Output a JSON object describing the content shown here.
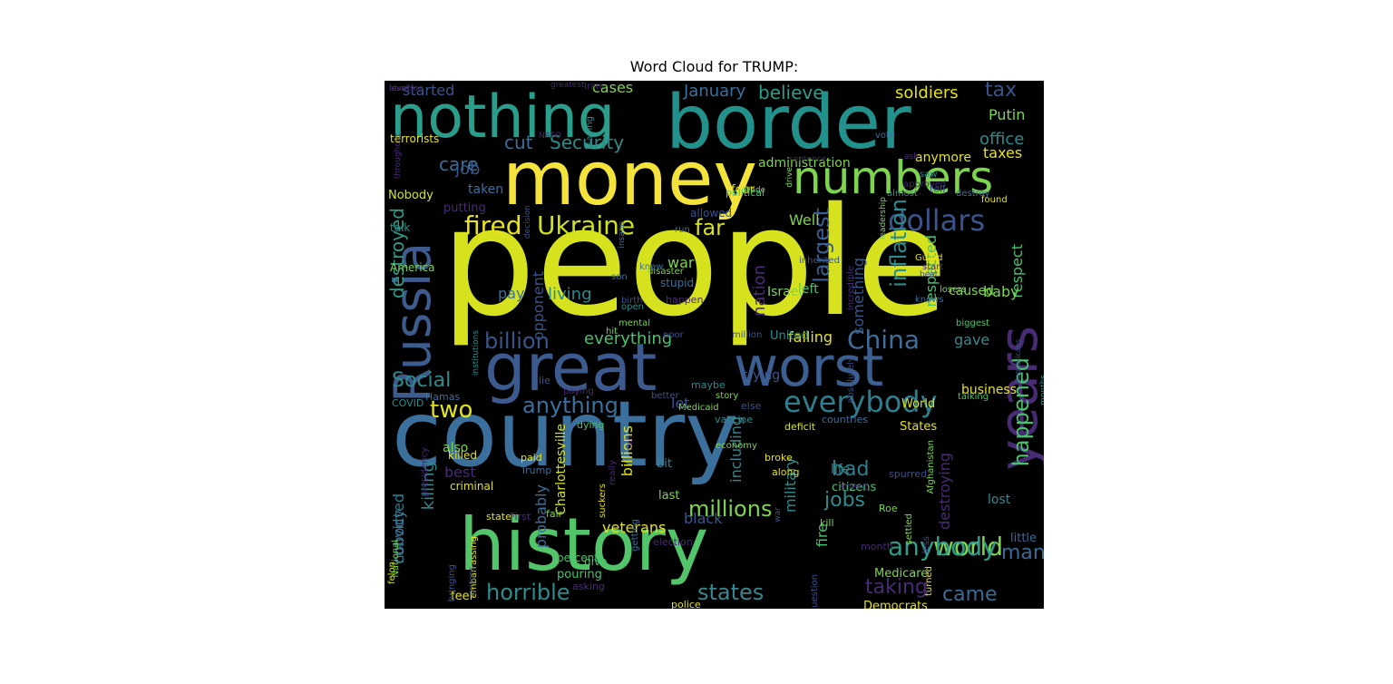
{
  "chart_data": {
    "type": "wordcloud",
    "title": "Word Cloud for TRUMP:",
    "background": "#000000",
    "words": [
      {
        "text": "people",
        "size": 165,
        "color": "#d6e21d"
      },
      {
        "text": "country",
        "size": 100,
        "color": "#3b6f9c"
      },
      {
        "text": "history",
        "size": 80,
        "color": "#52c56a"
      },
      {
        "text": "money",
        "size": 82,
        "color": "#f4e33b"
      },
      {
        "text": "border",
        "size": 82,
        "color": "#22918c"
      },
      {
        "text": "nothing",
        "size": 65,
        "color": "#2b9d8b"
      },
      {
        "text": "great",
        "size": 72,
        "color": "#3c5a8e"
      },
      {
        "text": "worst",
        "size": 60,
        "color": "#3b5f91"
      },
      {
        "text": "Russia",
        "size": 55,
        "color": "#3d5b8d"
      },
      {
        "text": "years",
        "size": 58,
        "color": "#482a75"
      },
      {
        "text": "numbers",
        "size": 50,
        "color": "#7ed44f"
      },
      {
        "text": "dollars",
        "size": 32,
        "color": "#3a538b"
      },
      {
        "text": "everybody",
        "size": 32,
        "color": "#2e7e8e"
      },
      {
        "text": "China",
        "size": 28,
        "color": "#3f6e99"
      },
      {
        "text": "fired",
        "size": 28,
        "color": "#e6e21d"
      },
      {
        "text": "Ukraine",
        "size": 28,
        "color": "#cfe11c"
      },
      {
        "text": "far",
        "size": 24,
        "color": "#d6e21d"
      },
      {
        "text": "largest",
        "size": 24,
        "color": "#3b5f91"
      },
      {
        "text": "inflation",
        "size": 24,
        "color": "#2e8b8c"
      },
      {
        "text": "anything",
        "size": 24,
        "color": "#3b6f9c"
      },
      {
        "text": "billion",
        "size": 24,
        "color": "#38568a"
      },
      {
        "text": "Social",
        "size": 22,
        "color": "#2e8b8c"
      },
      {
        "text": "two",
        "size": 26,
        "color": "#e0e31b"
      },
      {
        "text": "world",
        "size": 28,
        "color": "#7ed44f"
      },
      {
        "text": "anybody",
        "size": 28,
        "color": "#2f9b88"
      },
      {
        "text": "millions",
        "size": 24,
        "color": "#7ed44f"
      },
      {
        "text": "horrible",
        "size": 24,
        "color": "#2e8b8c"
      },
      {
        "text": "states",
        "size": 24,
        "color": "#38868e"
      },
      {
        "text": "happened",
        "size": 24,
        "color": "#4ac16d"
      },
      {
        "text": "jobs",
        "size": 22,
        "color": "#2e8b8c"
      },
      {
        "text": "bad",
        "size": 22,
        "color": "#2e7e8e"
      },
      {
        "text": "came",
        "size": 22,
        "color": "#3a6a95"
      },
      {
        "text": "man",
        "size": 22,
        "color": "#3a6a95"
      },
      {
        "text": "taking",
        "size": 22,
        "color": "#482a75"
      },
      {
        "text": "destroyed",
        "size": 20,
        "color": "#2f9b88"
      },
      {
        "text": "Security",
        "size": 20,
        "color": "#2e8b8c"
      },
      {
        "text": "cut",
        "size": 20,
        "color": "#3b6f9c"
      },
      {
        "text": "care",
        "size": 20,
        "color": "#3b6f9c"
      },
      {
        "text": "job",
        "size": 18,
        "color": "#38568a"
      },
      {
        "text": "tax",
        "size": 22,
        "color": "#3a538b"
      },
      {
        "text": "office",
        "size": 18,
        "color": "#2e8b8c"
      },
      {
        "text": "taxes",
        "size": 16,
        "color": "#e6e21d"
      },
      {
        "text": "Putin",
        "size": 16,
        "color": "#7ed44f"
      },
      {
        "text": "soldiers",
        "size": 18,
        "color": "#e6e21d"
      },
      {
        "text": "believe",
        "size": 20,
        "color": "#2f9b88"
      },
      {
        "text": "January",
        "size": 18,
        "color": "#3b6f9c"
      },
      {
        "text": "cases",
        "size": 16,
        "color": "#7ed44f"
      },
      {
        "text": "started",
        "size": 16,
        "color": "#3a538b"
      },
      {
        "text": "administration",
        "size": 14,
        "color": "#7ed44f"
      },
      {
        "text": "anymore",
        "size": 14,
        "color": "#e6e21d"
      },
      {
        "text": "respect",
        "size": 16,
        "color": "#4ac16d"
      },
      {
        "text": "respected",
        "size": 16,
        "color": "#4ac16d"
      },
      {
        "text": "something",
        "size": 16,
        "color": "#38568a"
      },
      {
        "text": "nation",
        "size": 18,
        "color": "#482a75"
      },
      {
        "text": "war",
        "size": 16,
        "color": "#7ed44f"
      },
      {
        "text": "living",
        "size": 18,
        "color": "#2e8b8c"
      },
      {
        "text": "pay",
        "size": 16,
        "color": "#3b6f9c"
      },
      {
        "text": "opponent",
        "size": 16,
        "color": "#3a538b"
      },
      {
        "text": "everything",
        "size": 18,
        "color": "#4ac16d"
      },
      {
        "text": "failing",
        "size": 16,
        "color": "#e6e21d"
      },
      {
        "text": "gave",
        "size": 16,
        "color": "#38868e"
      },
      {
        "text": "baby",
        "size": 16,
        "color": "#7ed44f"
      },
      {
        "text": "Well",
        "size": 16,
        "color": "#7ed44f"
      },
      {
        "text": "left",
        "size": 14,
        "color": "#4ac16d"
      },
      {
        "text": "Israel",
        "size": 14,
        "color": "#7ed44f"
      },
      {
        "text": "caused",
        "size": 14,
        "color": "#7ed44f"
      },
      {
        "text": "business",
        "size": 14,
        "color": "#e6e21d"
      },
      {
        "text": "destroying",
        "size": 16,
        "color": "#482a75"
      },
      {
        "text": "veterans",
        "size": 16,
        "color": "#e6e21d"
      },
      {
        "text": "killing",
        "size": 18,
        "color": "#2e8b8c"
      },
      {
        "text": "nobody",
        "size": 16,
        "color": "#3b6f9c"
      },
      {
        "text": "convicted",
        "size": 16,
        "color": "#2e7e8e"
      },
      {
        "text": "billions",
        "size": 16,
        "color": "#e6e21d"
      },
      {
        "text": "military",
        "size": 16,
        "color": "#2e8b8c"
      },
      {
        "text": "including",
        "size": 16,
        "color": "#38868e"
      },
      {
        "text": "black",
        "size": 16,
        "color": "#38568a"
      },
      {
        "text": "Charlottesville",
        "size": 14,
        "color": "#d6e21d"
      },
      {
        "text": "probably",
        "size": 16,
        "color": "#3b6f9c"
      },
      {
        "text": "best",
        "size": 16,
        "color": "#482a75"
      },
      {
        "text": "also",
        "size": 14,
        "color": "#7ed44f"
      },
      {
        "text": "let",
        "size": 16,
        "color": "#3a538b"
      },
      {
        "text": "United",
        "size": 13,
        "color": "#2e8b8c"
      },
      {
        "text": "trying",
        "size": 14,
        "color": "#3a538b"
      },
      {
        "text": "States",
        "size": 13,
        "color": "#e6e21d"
      },
      {
        "text": "World",
        "size": 13,
        "color": "#d6e21d"
      },
      {
        "text": "fire",
        "size": 16,
        "color": "#4ac16d"
      },
      {
        "text": "citizens",
        "size": 13,
        "color": "#4ac16d"
      },
      {
        "text": "life",
        "size": 14,
        "color": "#2e8b8c"
      },
      {
        "text": "lost",
        "size": 14,
        "color": "#38868e"
      },
      {
        "text": "little",
        "size": 13,
        "color": "#3a6a95"
      },
      {
        "text": "Medicare",
        "size": 13,
        "color": "#7ed44f"
      },
      {
        "text": "Democrats",
        "size": 13,
        "color": "#e6e21d"
      },
      {
        "text": "feel",
        "size": 13,
        "color": "#e6e21d"
      },
      {
        "text": "last",
        "size": 13,
        "color": "#7ed44f"
      },
      {
        "text": "bit",
        "size": 13,
        "color": "#38868e"
      },
      {
        "text": "taken",
        "size": 14,
        "color": "#3b6f9c"
      },
      {
        "text": "putting",
        "size": 13,
        "color": "#482a75"
      },
      {
        "text": "Nobody",
        "size": 13,
        "color": "#d6e21d"
      },
      {
        "text": "terrorists",
        "size": 12,
        "color": "#e6e21d"
      },
      {
        "text": "America",
        "size": 12,
        "color": "#7ed44f"
      },
      {
        "text": "talk",
        "size": 12,
        "color": "#2e8b8c"
      },
      {
        "text": "four",
        "size": 13,
        "color": "#e6e21d"
      },
      {
        "text": "allowed",
        "size": 12,
        "color": "#3a538b"
      },
      {
        "text": "stupid",
        "size": 12,
        "color": "#3b6f9c"
      },
      {
        "text": "happen",
        "size": 11,
        "color": "#482a75"
      },
      {
        "text": "killed",
        "size": 12,
        "color": "#e6e21d"
      },
      {
        "text": "criminal",
        "size": 12,
        "color": "#e6e21d"
      },
      {
        "text": "Hamas",
        "size": 11,
        "color": "#3b6f9c"
      },
      {
        "text": "COVID",
        "size": 11,
        "color": "#2e8b8c"
      },
      {
        "text": "paid",
        "size": 11,
        "color": "#e6e21d"
      },
      {
        "text": "Trump",
        "size": 11,
        "color": "#3b6f9c"
      },
      {
        "text": "state",
        "size": 11,
        "color": "#e6e21d"
      },
      {
        "text": "First",
        "size": 11,
        "color": "#482a75"
      },
      {
        "text": "fair",
        "size": 11,
        "color": "#7ed44f"
      },
      {
        "text": "pouring",
        "size": 13,
        "color": "#4ac16d"
      },
      {
        "text": "percent",
        "size": 12,
        "color": "#4ac16d"
      },
      {
        "text": "give",
        "size": 12,
        "color": "#4ac16d"
      },
      {
        "text": "asking",
        "size": 11,
        "color": "#482a75"
      },
      {
        "text": "election",
        "size": 11,
        "color": "#482a75"
      },
      {
        "text": "police",
        "size": 11,
        "color": "#e6e21d"
      },
      {
        "text": "month",
        "size": 11,
        "color": "#482a75"
      },
      {
        "text": "kill",
        "size": 11,
        "color": "#7ed44f"
      },
      {
        "text": "Roe",
        "size": 11,
        "color": "#7ed44f"
      },
      {
        "text": "spurred",
        "size": 11,
        "color": "#3a538b"
      },
      {
        "text": "spent",
        "size": 11,
        "color": "#482a75"
      },
      {
        "text": "along",
        "size": 11,
        "color": "#e6e21d"
      },
      {
        "text": "broke",
        "size": 11,
        "color": "#e6e21d"
      },
      {
        "text": "economy",
        "size": 10,
        "color": "#7ed44f"
      },
      {
        "text": "vaccine",
        "size": 11,
        "color": "#2e8b8c"
      },
      {
        "text": "deficit",
        "size": 11,
        "color": "#d6e21d"
      },
      {
        "text": "countries",
        "size": 11,
        "color": "#3b6f9c"
      },
      {
        "text": "else",
        "size": 11,
        "color": "#3a538b"
      },
      {
        "text": "story",
        "size": 10,
        "color": "#7ed44f"
      },
      {
        "text": "maybe",
        "size": 11,
        "color": "#2e8b8c"
      },
      {
        "text": "poor",
        "size": 10,
        "color": "#3a538b"
      },
      {
        "text": "lie",
        "size": 11,
        "color": "#3a538b"
      },
      {
        "text": "paying",
        "size": 10,
        "color": "#482a75"
      },
      {
        "text": "dying",
        "size": 11,
        "color": "#4ac16d"
      },
      {
        "text": "Medicaid",
        "size": 10,
        "color": "#7ed44f"
      },
      {
        "text": "better",
        "size": 10,
        "color": "#3a538b"
      },
      {
        "text": "birth",
        "size": 10,
        "color": "#3a538b"
      },
      {
        "text": "open",
        "size": 10,
        "color": "#2e8b8c"
      },
      {
        "text": "hit",
        "size": 10,
        "color": "#7ed44f"
      },
      {
        "text": "mental",
        "size": 10,
        "color": "#7ed44f"
      },
      {
        "text": "run",
        "size": 10,
        "color": "#3b6f9c"
      },
      {
        "text": "million",
        "size": 10,
        "color": "#3a538b"
      },
      {
        "text": "inherited",
        "size": 10,
        "color": "#3a538b"
      },
      {
        "text": "beat",
        "size": 9,
        "color": "#3a538b"
      },
      {
        "text": "Guard",
        "size": 10,
        "color": "#e6e21d"
      },
      {
        "text": "knows",
        "size": 10,
        "color": "#3b6f9c"
      },
      {
        "text": "biggest",
        "size": 10,
        "color": "#4ac16d"
      },
      {
        "text": "losers",
        "size": 10,
        "color": "#7ed44f"
      },
      {
        "text": "talking",
        "size": 10,
        "color": "#4ac16d"
      },
      {
        "text": "start",
        "size": 10,
        "color": "#482a75"
      },
      {
        "text": "Wade",
        "size": 9,
        "color": "#7ed44f"
      },
      {
        "text": "political",
        "size": 11,
        "color": "#4ac16d"
      },
      {
        "text": "disaster",
        "size": 10,
        "color": "#7ed44f"
      },
      {
        "text": "knew",
        "size": 10,
        "color": "#3b6f9c"
      },
      {
        "text": "son",
        "size": 10,
        "color": "#3b6f9c"
      },
      {
        "text": "ask",
        "size": 9,
        "color": "#482a75"
      },
      {
        "text": "saw",
        "size": 10,
        "color": "#2e8b8c"
      },
      {
        "text": "sentence",
        "size": 9,
        "color": "#482a75"
      },
      {
        "text": "approved",
        "size": 10,
        "color": "#482a75"
      },
      {
        "text": "tell",
        "size": 11,
        "color": "#3a538b"
      },
      {
        "text": "destroy",
        "size": 10,
        "color": "#3b6f9c"
      },
      {
        "text": "found",
        "size": 10,
        "color": "#e6e21d"
      },
      {
        "text": "NATO",
        "size": 9,
        "color": "#482a75"
      },
      {
        "text": "greatest",
        "size": 9,
        "color": "#482a75"
      },
      {
        "text": "almost",
        "size": 10,
        "color": "#38868e"
      },
      {
        "text": "Iran",
        "size": 10,
        "color": "#482a75"
      },
      {
        "text": "vote",
        "size": 10,
        "color": "#3b6f9c"
      },
      {
        "text": "saying",
        "size": 10,
        "color": "#2e8b8c"
      },
      {
        "text": "leadership",
        "size": 9,
        "color": "#7ed44f"
      },
      {
        "text": "drive",
        "size": 9,
        "color": "#7ed44f"
      },
      {
        "text": "throughout",
        "size": 9,
        "color": "#482a75"
      },
      {
        "text": "decision",
        "size": 9,
        "color": "#3a538b"
      },
      {
        "text": "insane",
        "size": 9,
        "color": "#3b6f9c"
      },
      {
        "text": "absolutely",
        "size": 10,
        "color": "#3a538b"
      },
      {
        "text": "incredible",
        "size": 10,
        "color": "#482a75"
      },
      {
        "text": "Republicans",
        "size": 8,
        "color": "#3a538b"
      },
      {
        "text": "months",
        "size": 9,
        "color": "#2e8b8c"
      },
      {
        "text": "institutions",
        "size": 9,
        "color": "#2e8b8c"
      },
      {
        "text": "suckers",
        "size": 10,
        "color": "#e6e21d"
      },
      {
        "text": "really",
        "size": 10,
        "color": "#482a75"
      },
      {
        "text": "call",
        "size": 10,
        "color": "#482a75"
      },
      {
        "text": "presidency",
        "size": 10,
        "color": "#482a75"
      },
      {
        "text": "felon",
        "size": 10,
        "color": "#d6e21d"
      },
      {
        "text": "National",
        "size": 10,
        "color": "#7ed44f"
      },
      {
        "text": "embarrassing",
        "size": 10,
        "color": "#e6e21d"
      },
      {
        "text": "bringing",
        "size": 10,
        "color": "#3a538b"
      },
      {
        "text": "prisons",
        "size": 9,
        "color": "#3a538b"
      },
      {
        "text": "war",
        "size": 9,
        "color": "#3a538b"
      },
      {
        "text": "question",
        "size": 10,
        "color": "#3a538b"
      },
      {
        "text": "getting",
        "size": 10,
        "color": "#3b6f9c"
      },
      {
        "text": "less",
        "size": 10,
        "color": "#3a538b"
      },
      {
        "text": "settled",
        "size": 10,
        "color": "#7ed44f"
      },
      {
        "text": "turned",
        "size": 10,
        "color": "#e6e21d"
      },
      {
        "text": "Afghanistan",
        "size": 10,
        "color": "#7ed44f"
      },
      {
        "text": "abortion",
        "size": 9,
        "color": "#482a75"
      },
      {
        "text": "level",
        "size": 9,
        "color": "#482a75"
      }
    ]
  }
}
